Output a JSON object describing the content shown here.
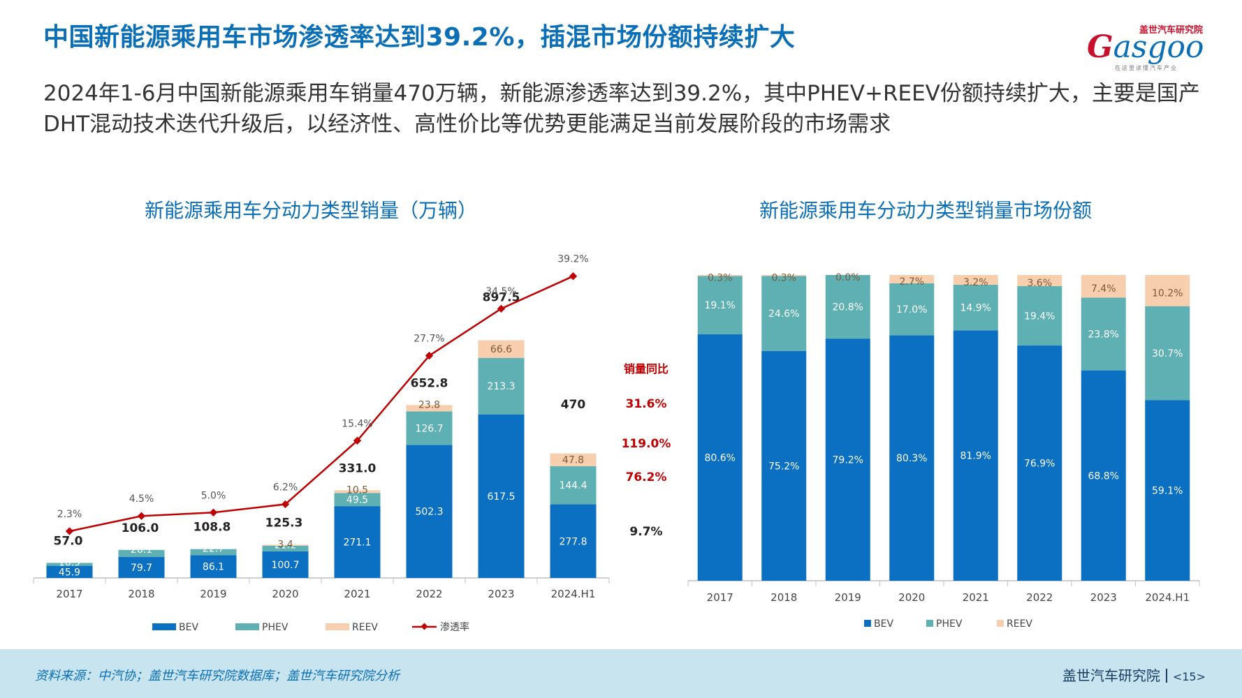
{
  "header": {
    "title": "中国新能源乘用车市场渗透率达到39.2%，插混市场份额持续扩大",
    "subtitle": "2024年1-6月中国新能源乘用车销量470万辆，新能源渗透率达到39.2%，其中PHEV+REEV份额持续扩大，主要是国产DHT混动技术迭代升级后，以经济性、高性价比等优势更能满足当前发展阶段的市场需求"
  },
  "logo": {
    "cn": "盖世汽车研究院",
    "en_first": "G",
    "en_rest": "asgoo",
    "tagline": "在这里读懂汽车产业"
  },
  "colors": {
    "bev": "#0b6fc2",
    "phev": "#5fb0b3",
    "reev": "#f7cfae",
    "rate": "#c00000",
    "title": "#0b6fb8"
  },
  "chart_data": [
    {
      "type": "bar",
      "title": "新能源乘用车分动力类型销量（万辆）",
      "stacked": true,
      "categories": [
        "2017",
        "2018",
        "2019",
        "2020",
        "2021",
        "2022",
        "2023",
        "2024.H1"
      ],
      "series": [
        {
          "name": "BEV",
          "values": [
            45.9,
            79.7,
            86.1,
            100.7,
            271.1,
            502.3,
            617.5,
            277.8
          ]
        },
        {
          "name": "PHEV",
          "values": [
            10.9,
            26.1,
            22.7,
            21.2,
            49.5,
            126.7,
            213.3,
            144.4
          ]
        },
        {
          "name": "REEV",
          "values": [
            null,
            null,
            null,
            3.4,
            10.5,
            23.8,
            66.6,
            47.8
          ]
        }
      ],
      "totals": [
        "57.0",
        "106.0",
        "108.8",
        "125.3",
        "331.0",
        "652.8",
        "897.5",
        "470"
      ],
      "line_series": {
        "name": "渗透率",
        "values": [
          2.3,
          4.5,
          5.0,
          6.2,
          15.4,
          27.7,
          34.5,
          39.2
        ],
        "labels": [
          "2.3%",
          "4.5%",
          "5.0%",
          "6.2%",
          "15.4%",
          "27.7%",
          "34.5%",
          "39.2%"
        ]
      },
      "yoy": {
        "title": "销量同比",
        "items": [
          "31.6%",
          "119.0%",
          "76.2%",
          "9.7%"
        ]
      },
      "legend": "bottom"
    },
    {
      "type": "bar",
      "title": "新能源乘用车分动力类型销量市场份额",
      "stacked": true,
      "percent": true,
      "categories": [
        "2017",
        "2018",
        "2019",
        "2020",
        "2021",
        "2022",
        "2023",
        "2024.H1"
      ],
      "series": [
        {
          "name": "BEV",
          "values": [
            80.6,
            75.2,
            79.2,
            80.3,
            81.9,
            76.9,
            68.8,
            59.1
          ],
          "labels": [
            "80.6%",
            "75.2%",
            "79.2%",
            "80.3%",
            "81.9%",
            "76.9%",
            "68.8%",
            "59.1%"
          ]
        },
        {
          "name": "PHEV",
          "values": [
            19.1,
            24.6,
            20.8,
            17.0,
            14.9,
            19.4,
            23.8,
            30.7
          ],
          "labels": [
            "19.1%",
            "24.6%",
            "20.8%",
            "17.0%",
            "14.9%",
            "19.4%",
            "23.8%",
            "30.7%"
          ]
        },
        {
          "name": "REEV",
          "values": [
            0.3,
            0.3,
            0.0,
            2.7,
            3.2,
            3.6,
            7.4,
            10.2
          ],
          "labels": [
            "0.3%",
            "0.3%",
            "0.0%",
            "2.7%",
            "3.2%",
            "3.6%",
            "7.4%",
            "10.2%"
          ]
        }
      ],
      "legend": "bottom"
    }
  ],
  "footer": {
    "source": "资料来源：中汽协；盖世汽车研究院数据库；盖世汽车研究院分析",
    "org": "盖世汽车研究院",
    "page": "<15>"
  }
}
